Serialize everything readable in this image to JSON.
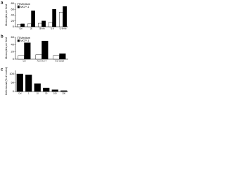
{
  "chart_data": [
    {
      "type": "bar",
      "panel": "a",
      "y_label": "Monocytes per field",
      "categories": [
        "Ctrl",
        "JE",
        "JE+Ab",
        "IL-8",
        "IL-8+Ab"
      ],
      "series": [
        {
          "name": "Medium",
          "color": "#ffffff",
          "values": [
            8,
            10,
            12,
            15,
            50
          ]
        },
        {
          "name": "MCP-1",
          "color": "#000000",
          "values": [
            10,
            55,
            20,
            60,
            70
          ]
        }
      ],
      "ylim": [
        0,
        80
      ],
      "yticks": [
        0,
        20,
        40,
        60,
        80
      ]
    },
    {
      "type": "bar",
      "panel": "b",
      "y_label": "Monocytes per field",
      "categories": [
        "Ctrl",
        "Anti-VLA-4",
        "Anti-CD18"
      ],
      "series": [
        {
          "name": "Medium",
          "color": "#ffffff",
          "values": [
            10,
            12,
            10
          ]
        },
        {
          "name": "MCP-1",
          "color": "#000000",
          "values": [
            45,
            50,
            15
          ]
        }
      ],
      "ylim": [
        0,
        60
      ],
      "yticks": [
        0,
        20,
        40,
        60
      ]
    },
    {
      "type": "bar",
      "panel": "c",
      "y_label": "Cells bound (% of control)",
      "categories": [
        "Ctrl",
        "1",
        "10",
        "50",
        "100",
        "200"
      ],
      "series": [
        {
          "name": "Bound",
          "color": "#000000",
          "values": [
            100,
            95,
            45,
            20,
            10,
            5
          ]
        }
      ],
      "ylim": [
        0,
        120
      ],
      "yticks": [
        0,
        50,
        100
      ]
    }
  ]
}
